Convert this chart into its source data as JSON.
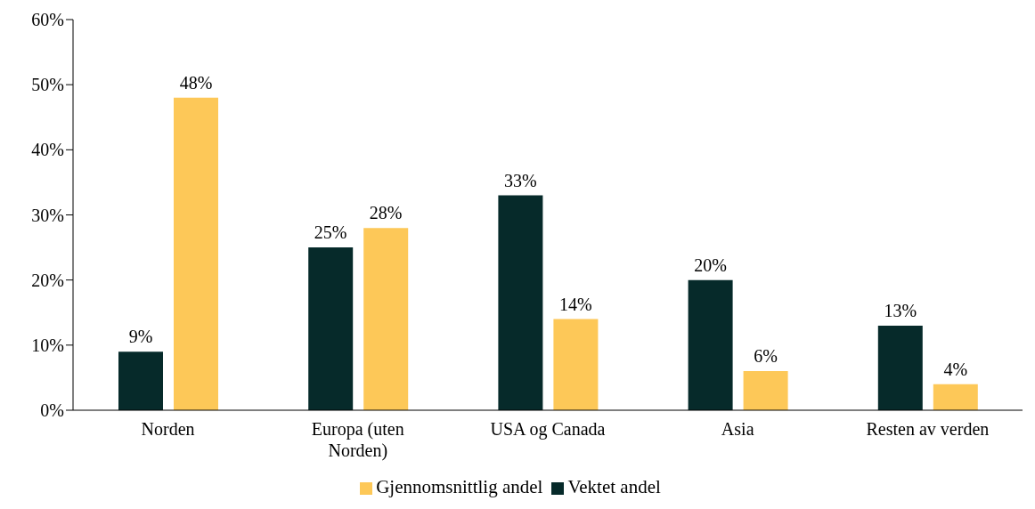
{
  "chart_data": {
    "type": "bar",
    "categories": [
      "Norden",
      "Europa (uten Norden)",
      "USA og Canada",
      "Asia",
      "Resten av verden"
    ],
    "series": [
      {
        "name": "Vektet andel",
        "color": "#062a2a",
        "values": [
          9,
          25,
          33,
          20,
          13
        ],
        "value_labels": [
          "9%",
          "25%",
          "33%",
          "20%",
          "13%"
        ]
      },
      {
        "name": "Gjennomsnittlig andel",
        "color": "#fdc858",
        "values": [
          48,
          28,
          14,
          6,
          4
        ],
        "value_labels": [
          "48%",
          "28%",
          "14%",
          "6%",
          "4%"
        ]
      }
    ],
    "ylim": [
      0,
      60
    ],
    "yticks": [
      {
        "value": 0,
        "label": "0%"
      },
      {
        "value": 10,
        "label": "10%"
      },
      {
        "value": 20,
        "label": "20%"
      },
      {
        "value": 30,
        "label": "30%"
      },
      {
        "value": 40,
        "label": "40%"
      },
      {
        "value": 50,
        "label": "50%"
      },
      {
        "value": 60,
        "label": "60%"
      }
    ],
    "grid": false,
    "legend": "bottom"
  }
}
